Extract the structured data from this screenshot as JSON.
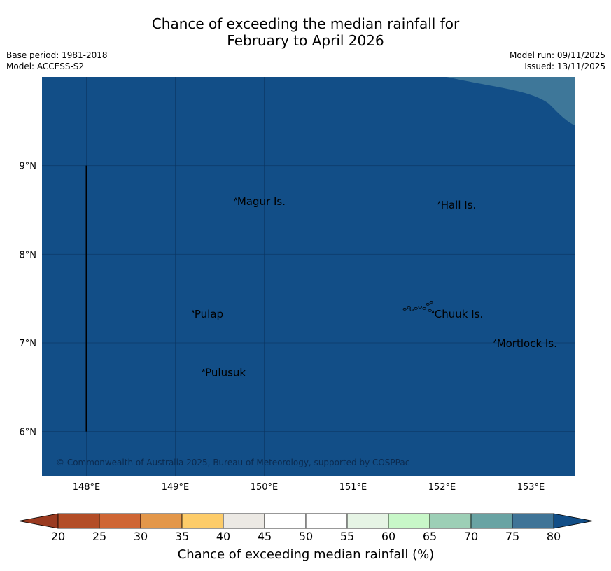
{
  "title": {
    "line1": "Chance of exceeding the median rainfall for",
    "line2": "February to April 2026"
  },
  "meta": {
    "base_period": "Base period: 1981-2018",
    "model": "Model: ACCESS-S2",
    "model_run": "Model run: 09/11/2025",
    "issued": "Issued: 13/11/2025"
  },
  "map": {
    "lon_range": [
      147.5,
      153.5
    ],
    "lat_range": [
      5.5,
      10
    ],
    "ocean_color": "#124e87",
    "corner_color": "#3e7799",
    "lon_ticks": [
      {
        "value": 148,
        "label": "148°E"
      },
      {
        "value": 149,
        "label": "149°E"
      },
      {
        "value": 150,
        "label": "150°E"
      },
      {
        "value": 151,
        "label": "151°E"
      },
      {
        "value": 152,
        "label": "152°E"
      },
      {
        "value": 153,
        "label": "153°E"
      }
    ],
    "lat_ticks": [
      {
        "value": 9,
        "label": "9°N"
      },
      {
        "value": 8,
        "label": "8°N"
      },
      {
        "value": 7,
        "label": "7°N"
      },
      {
        "value": 6,
        "label": "6°N"
      }
    ],
    "boundary_line": {
      "lon": 148,
      "lat_from": 6,
      "lat_to": 9
    },
    "places": [
      {
        "name": "Magur Is.",
        "lon": 149.68,
        "lat": 8.57
      },
      {
        "name": "Hall Is.",
        "lon": 151.97,
        "lat": 8.53
      },
      {
        "name": "Pulap",
        "lon": 149.2,
        "lat": 7.3
      },
      {
        "name": "Chuuk Is.",
        "lon": 151.9,
        "lat": 7.3
      },
      {
        "name": "Mortlock Is.",
        "lon": 152.6,
        "lat": 6.97
      },
      {
        "name": "Pulusuk",
        "lon": 149.32,
        "lat": 6.64
      }
    ],
    "copyright": "© Commonwealth of Australia 2025, Bureau of Meteorology, supported by COSPPac"
  },
  "colorbar": {
    "title": "Chance of exceeding median rainfall (%)",
    "low_color": "#9a3a20",
    "high_color": "#124e87",
    "bins": [
      {
        "from": 20,
        "to": 25,
        "color": "#b34d27"
      },
      {
        "from": 25,
        "to": 30,
        "color": "#cf6634"
      },
      {
        "from": 30,
        "to": 35,
        "color": "#e3974a"
      },
      {
        "from": 35,
        "to": 40,
        "color": "#fdcc69"
      },
      {
        "from": 40,
        "to": 45,
        "color": "#ece9e4"
      },
      {
        "from": 45,
        "to": 50,
        "color": "#ffffff"
      },
      {
        "from": 50,
        "to": 55,
        "color": "#ffffff"
      },
      {
        "from": 55,
        "to": 60,
        "color": "#e6f4e5"
      },
      {
        "from": 60,
        "to": 65,
        "color": "#c8f7c8"
      },
      {
        "from": 65,
        "to": 70,
        "color": "#9dcfb6"
      },
      {
        "from": 70,
        "to": 75,
        "color": "#69a3a3"
      },
      {
        "from": 75,
        "to": 80,
        "color": "#3f7497"
      }
    ],
    "tick_labels": [
      "20",
      "25",
      "30",
      "35",
      "40",
      "45",
      "50",
      "55",
      "60",
      "65",
      "70",
      "75",
      "80"
    ]
  }
}
